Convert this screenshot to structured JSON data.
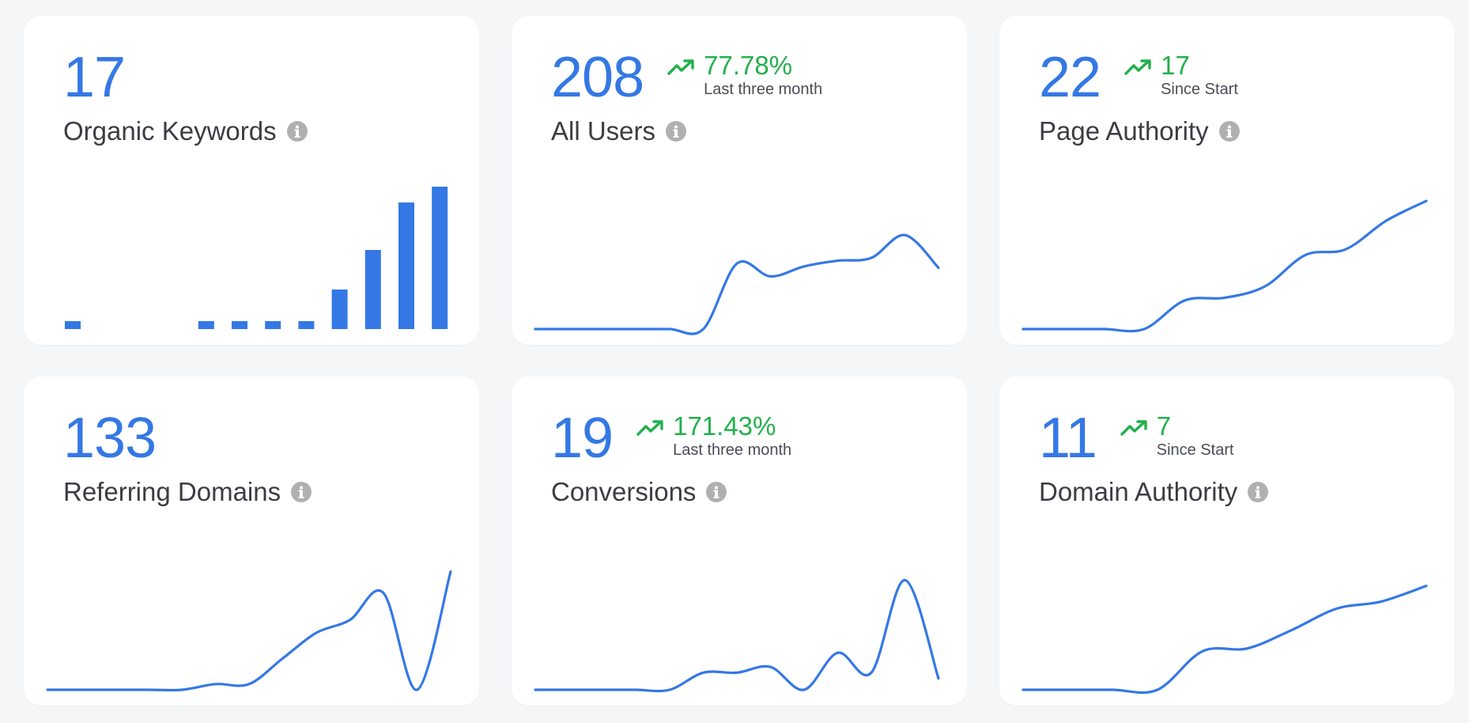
{
  "colors": {
    "accent": "#3478e5",
    "positive": "#22b04b",
    "text": "#3b3d42",
    "muted": "#b0b0b0"
  },
  "cards": [
    {
      "value": "17",
      "label": "Organic Keywords",
      "info_icon": "info-icon",
      "chart_data": {
        "type": "bar",
        "values": [
          1,
          0,
          0,
          0,
          1,
          1,
          1,
          1,
          5,
          10,
          16,
          18
        ],
        "ylim": [
          0,
          18
        ]
      }
    },
    {
      "value": "208",
      "trend_icon": "trending-up-icon",
      "trend_value": "77.78%",
      "trend_label": "Last three month",
      "label": "All Users",
      "info_icon": "info-icon",
      "chart_data": {
        "type": "line",
        "values": [
          0,
          0,
          0,
          0,
          0,
          0,
          46,
          37,
          44,
          48,
          50,
          66,
          43
        ],
        "ylim": [
          0,
          100
        ]
      }
    },
    {
      "value": "22",
      "trend_icon": "trending-up-icon",
      "trend_value": "17",
      "trend_label": "Since Start",
      "label": "Page Authority",
      "info_icon": "info-icon",
      "chart_data": {
        "type": "line",
        "values": [
          0,
          0,
          0,
          0,
          20,
          22,
          30,
          52,
          56,
          76,
          90
        ],
        "ylim": [
          0,
          100
        ]
      }
    },
    {
      "value": "133",
      "label": "Referring Domains",
      "info_icon": "info-icon",
      "chart_data": {
        "type": "line",
        "values": [
          0,
          0,
          0,
          0,
          0,
          4,
          4,
          22,
          40,
          49,
          68,
          0,
          83
        ],
        "ylim": [
          0,
          100
        ]
      }
    },
    {
      "value": "19",
      "trend_icon": "trending-up-icon",
      "trend_value": "171.43%",
      "trend_label": "Last three month",
      "label": "Conversions",
      "info_icon": "info-icon",
      "chart_data": {
        "type": "line",
        "values": [
          0,
          0,
          0,
          0,
          0,
          12,
          12,
          16,
          0,
          26,
          12,
          77,
          8
        ],
        "ylim": [
          0,
          100
        ]
      }
    },
    {
      "value": "11",
      "trend_icon": "trending-up-icon",
      "trend_value": "7",
      "trend_label": "Since Start",
      "label": "Domain Authority",
      "info_icon": "info-icon",
      "chart_data": {
        "type": "line",
        "values": [
          0,
          0,
          0,
          0,
          27,
          29,
          42,
          57,
          62,
          73
        ],
        "ylim": [
          0,
          100
        ]
      }
    }
  ]
}
